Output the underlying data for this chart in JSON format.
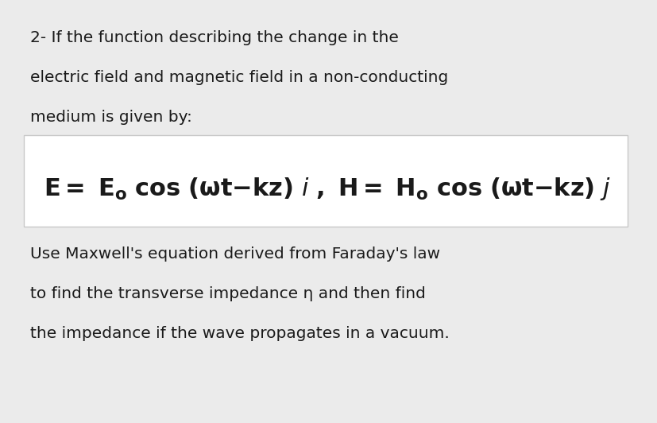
{
  "background_color": "#ebebeb",
  "inner_bg_color": "#ffffff",
  "text_color": "#1a1a1a",
  "box_edge_color": "#c8c8c8",
  "line1": "2- If the function describing the change in the",
  "line2": "electric field and magnetic field in a non-conducting",
  "line3": "medium is given by:",
  "line4": "Use Maxwell's equation derived from Faraday's law",
  "line5": "to find the transverse impedance η and then find",
  "line6": "the impedance if the wave propagates in a vacuum.",
  "fig_width": 8.28,
  "fig_height": 5.32,
  "dpi": 100
}
